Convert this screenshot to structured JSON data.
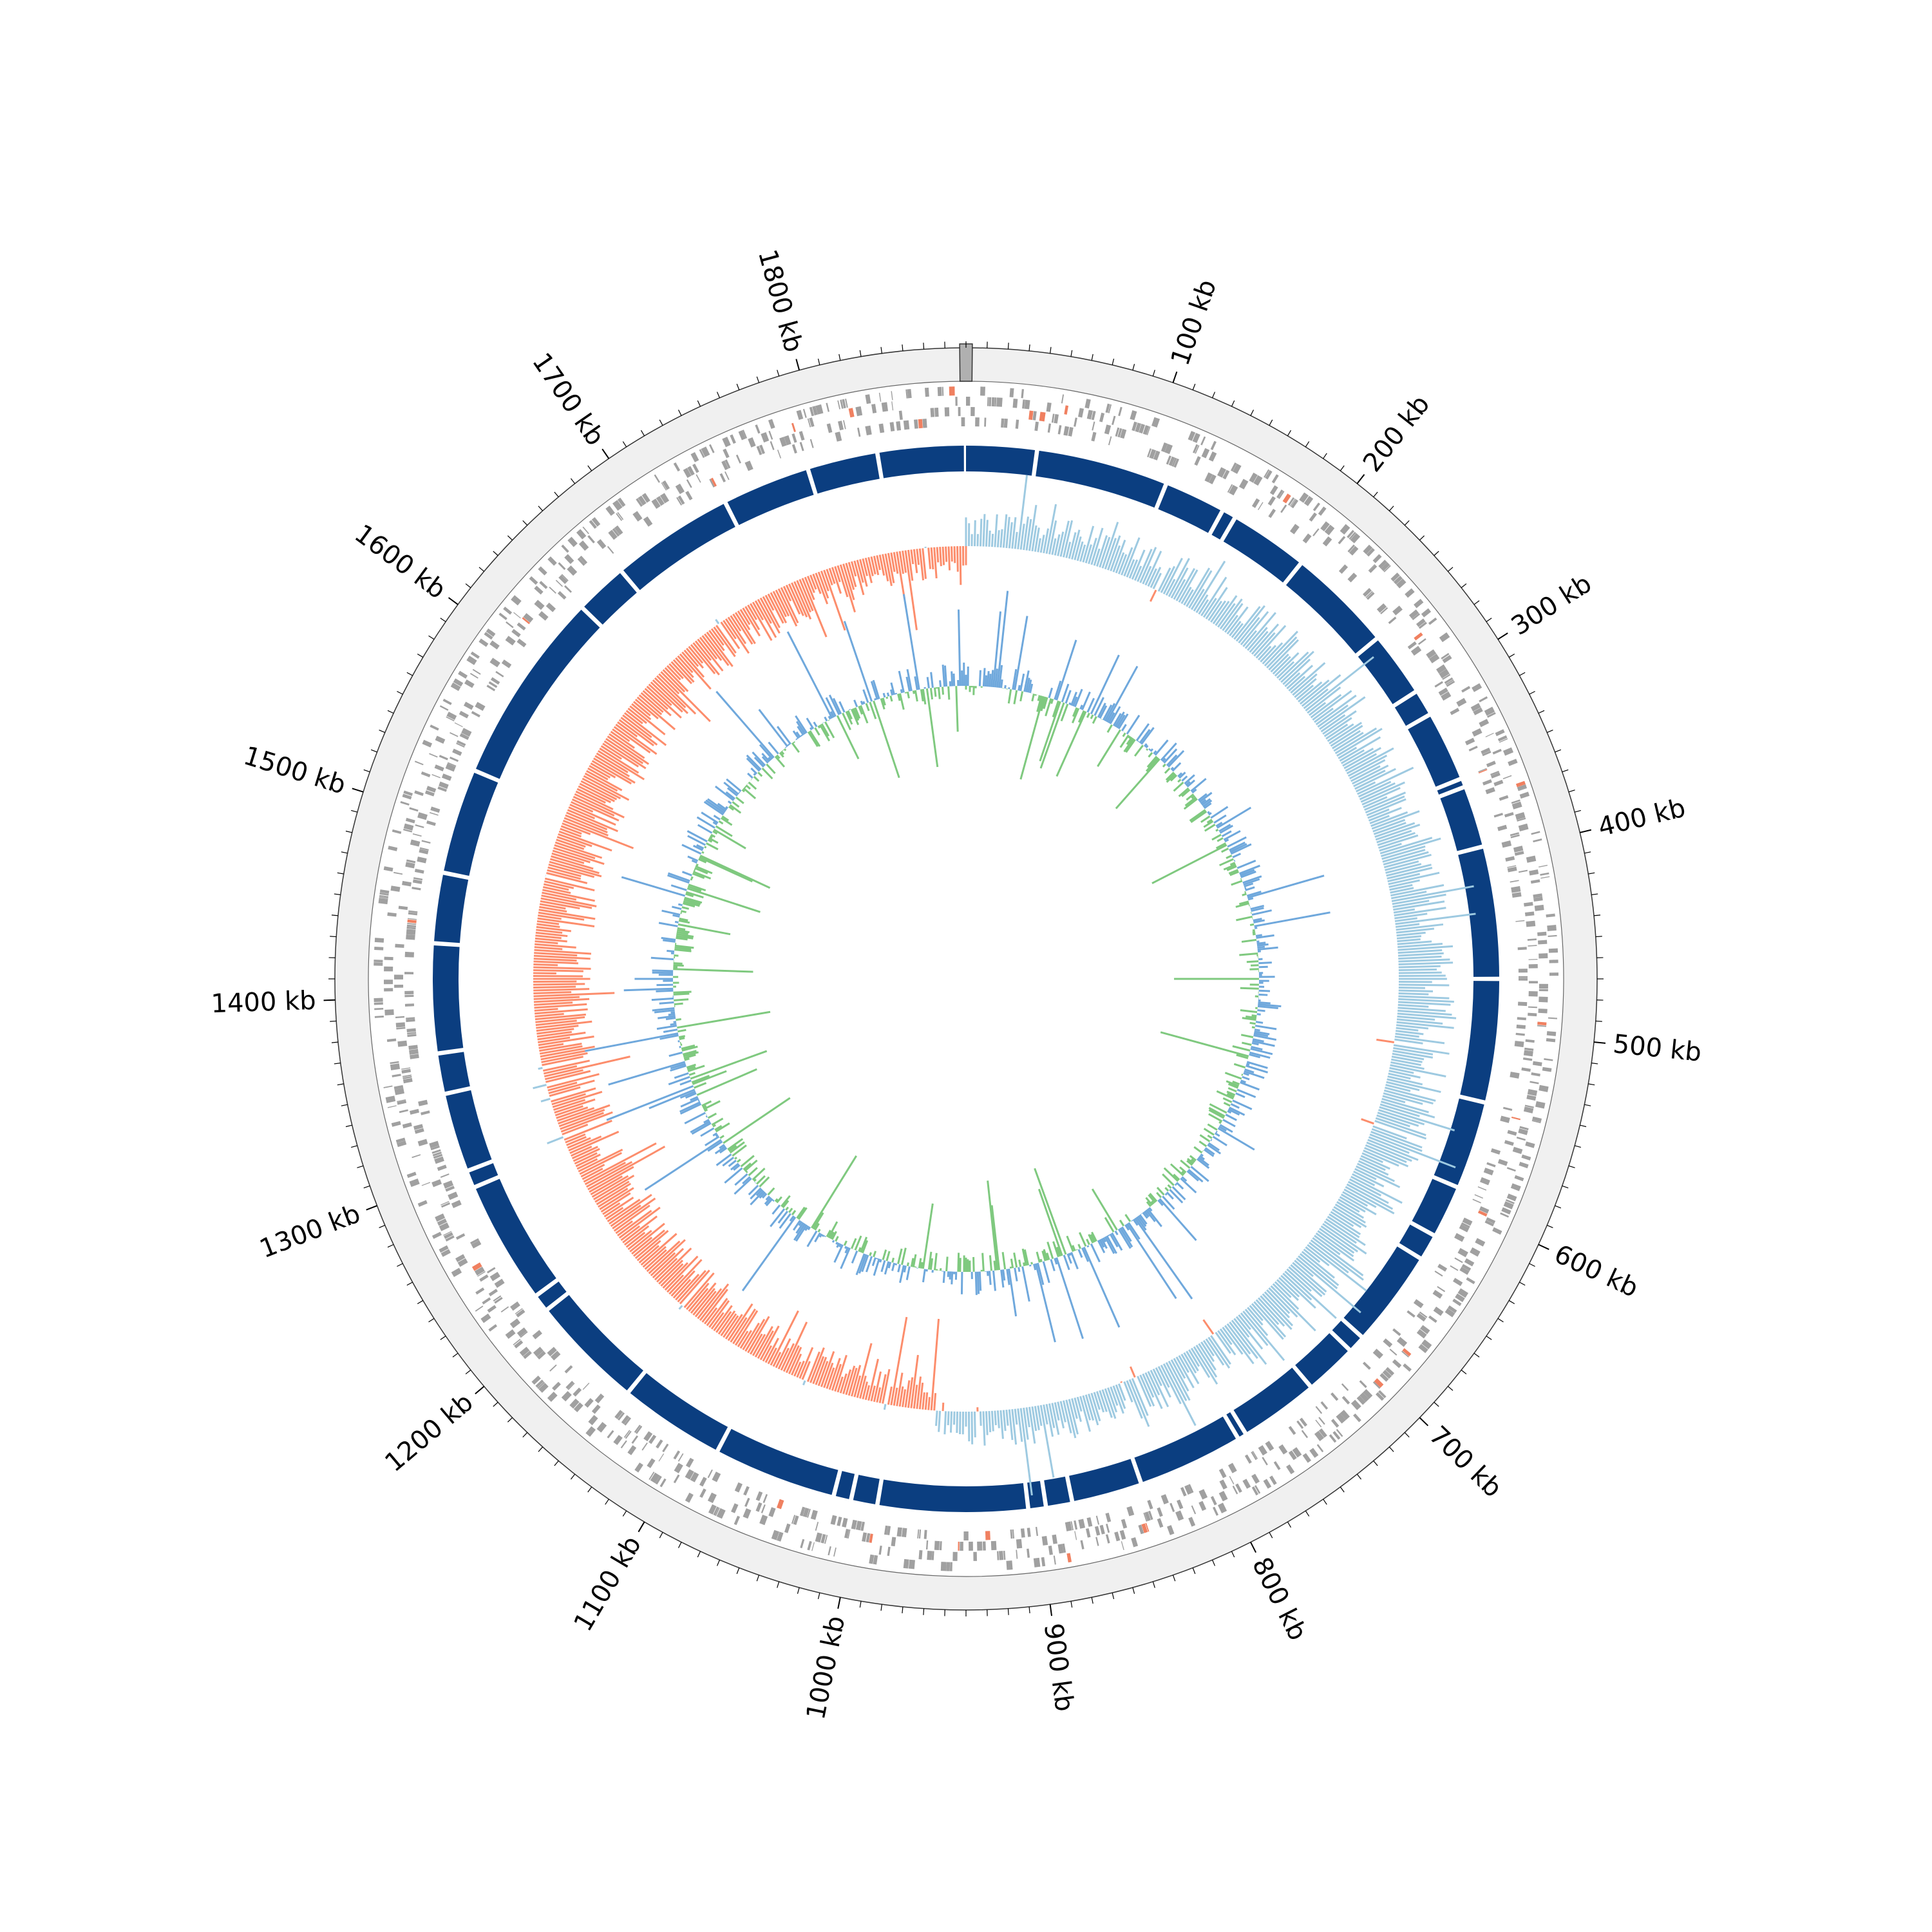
{
  "chart_data": {
    "type": "circular-genome",
    "title": "",
    "genome_length_kb": 1880,
    "tick_unit": "kb",
    "major_ticks": [
      {
        "value": 100,
        "label": "100 kb"
      },
      {
        "value": 200,
        "label": "200 kb"
      },
      {
        "value": 300,
        "label": "300 kb"
      },
      {
        "value": 400,
        "label": "400 kb"
      },
      {
        "value": 500,
        "label": "500 kb"
      },
      {
        "value": 600,
        "label": "600 kb"
      },
      {
        "value": 700,
        "label": "700 kb"
      },
      {
        "value": 800,
        "label": "800 kb"
      },
      {
        "value": 900,
        "label": "900 kb"
      },
      {
        "value": 1000,
        "label": "1000 kb"
      },
      {
        "value": 1100,
        "label": "1100 kb"
      },
      {
        "value": 1200,
        "label": "1200 kb"
      },
      {
        "value": 1300,
        "label": "1300 kb"
      },
      {
        "value": 1400,
        "label": "1400 kb"
      },
      {
        "value": 1500,
        "label": "1500 kb"
      },
      {
        "value": 1600,
        "label": "1600 kb"
      },
      {
        "value": 1700,
        "label": "1700 kb"
      },
      {
        "value": 1800,
        "label": "1800 kb"
      }
    ],
    "minor_tick_step_kb": 10,
    "origin_marker_kb": 0,
    "tracks": [
      {
        "name": "cds",
        "color": "#a0a0a0",
        "highlight_color": "#f08060"
      },
      {
        "name": "contigs",
        "color": "#0b3e80",
        "gap_color": "#ffffff"
      },
      {
        "name": "gc-skew",
        "positive_color": "#9ecae1",
        "negative_color": "#fc8d6c",
        "reverse_point_kb": 960
      },
      {
        "name": "gc-content",
        "above_color": "#6fa8dc",
        "below_color": "#7fc97f"
      }
    ],
    "contig_breaks_kb": [
      40,
      115,
      150,
      158,
      203,
      263,
      300,
      315,
      355,
      360,
      395,
      470,
      540,
      590,
      620,
      635,
      690,
      700,
      730,
      775,
      780,
      840,
      880,
      895,
      905,
      990,
      1005,
      1015,
      1085,
      1145,
      1210,
      1220,
      1290,
      1300,
      1345,
      1368,
      1430,
      1470,
      1530,
      1640,
      1670,
      1740,
      1790,
      1830
    ],
    "colors": {
      "background_ring": "#f0f0f0",
      "ring_outline": "#555555",
      "origin_marker": "#b0b0b0"
    }
  }
}
